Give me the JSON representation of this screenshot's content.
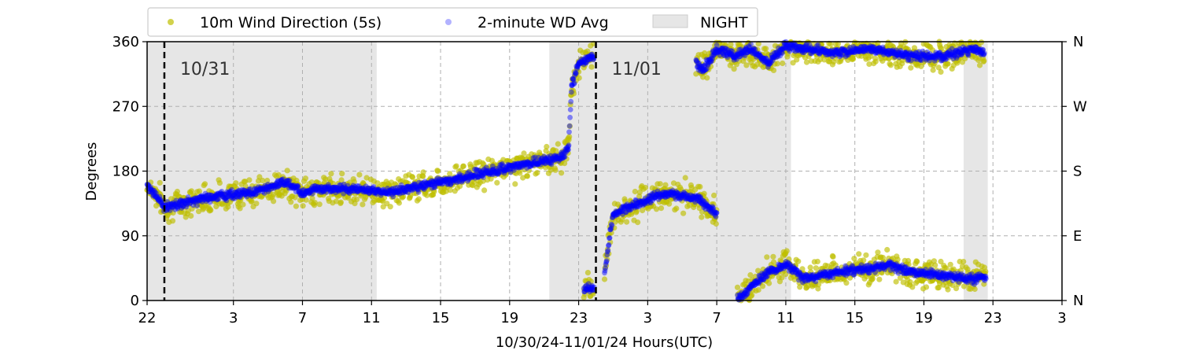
{
  "chart_data": {
    "type": "scatter",
    "xlabel": "10/30/24-11/01/24  Hours(UTC)",
    "ylabel": "Degrees",
    "xlim": [
      0,
      53
    ],
    "ylim": [
      0,
      360
    ],
    "x_ticks": [
      {
        "x": 0,
        "label": "22"
      },
      {
        "x": 5,
        "label": "3"
      },
      {
        "x": 9,
        "label": "7"
      },
      {
        "x": 13,
        "label": "11"
      },
      {
        "x": 17,
        "label": "15"
      },
      {
        "x": 21,
        "label": "19"
      },
      {
        "x": 25,
        "label": "23"
      },
      {
        "x": 29,
        "label": "3"
      },
      {
        "x": 33,
        "label": "7"
      },
      {
        "x": 37,
        "label": "11"
      },
      {
        "x": 41,
        "label": "15"
      },
      {
        "x": 45,
        "label": "19"
      },
      {
        "x": 49,
        "label": "23"
      },
      {
        "x": 53,
        "label": "3"
      }
    ],
    "y_ticks": [
      0,
      90,
      180,
      270,
      360
    ],
    "y_right_ticks": [
      {
        "y": 0,
        "label": "N"
      },
      {
        "y": 90,
        "label": "E"
      },
      {
        "y": 180,
        "label": "S"
      },
      {
        "y": 270,
        "label": "W"
      },
      {
        "y": 360,
        "label": "N"
      }
    ],
    "grid": true,
    "legend": {
      "placement": "top",
      "entries": [
        "10m Wind Direction (5s)",
        "2-minute WD Avg",
        "NIGHT"
      ]
    },
    "colors": {
      "wind_5s": "#bfbf00",
      "avg_2min": "#0000ff",
      "night": "#e6e6e6"
    },
    "night_periods": [
      [
        0,
        13.3
      ],
      [
        23.3,
        37.3
      ],
      [
        47.3,
        48.7
      ]
    ],
    "day_markers": [
      {
        "x": 1,
        "label": "10/31"
      },
      {
        "x": 26,
        "label": "11/01"
      }
    ],
    "series": [
      {
        "name": "10m Wind Direction (5s)",
        "scatter_spread": 28,
        "segments": [
          [
            [
              0,
              160
            ],
            [
              0.5,
              150
            ],
            [
              1,
              130
            ],
            [
              2,
              135
            ],
            [
              4,
              145
            ],
            [
              6,
              150
            ],
            [
              8,
              160
            ],
            [
              9,
              150
            ],
            [
              10,
              155
            ],
            [
              12,
              155
            ],
            [
              14,
              150
            ],
            [
              16,
              160
            ],
            [
              18,
              170
            ],
            [
              20,
              180
            ],
            [
              22,
              190
            ],
            [
              24,
              200
            ],
            [
              24.4,
              210
            ],
            [
              24.6,
              300
            ],
            [
              25,
              330
            ],
            [
              25.9,
              340
            ]
          ],
          [
            [
              25.3,
              10
            ],
            [
              25.9,
              20
            ]
          ],
          [
            [
              26.5,
              40
            ],
            [
              27,
              120
            ],
            [
              28,
              130
            ],
            [
              29,
              140
            ],
            [
              30,
              150
            ],
            [
              31,
              145
            ],
            [
              32,
              140
            ],
            [
              33,
              120
            ]
          ],
          [
            [
              31.8,
              330
            ],
            [
              32.2,
              320
            ],
            [
              33,
              350
            ],
            [
              34,
              340
            ],
            [
              35,
              350
            ],
            [
              36,
              330
            ],
            [
              37,
              355
            ],
            [
              38,
              350
            ],
            [
              40,
              345
            ],
            [
              42,
              350
            ],
            [
              44,
              340
            ],
            [
              46,
              340
            ],
            [
              48,
              350
            ],
            [
              48.5,
              345
            ]
          ],
          [
            [
              34.2,
              0
            ],
            [
              35,
              20
            ],
            [
              36,
              40
            ],
            [
              37,
              50
            ],
            [
              38,
              30
            ],
            [
              40,
              40
            ],
            [
              42,
              45
            ],
            [
              43,
              50
            ],
            [
              44,
              40
            ],
            [
              46,
              35
            ],
            [
              48,
              30
            ],
            [
              48.6,
              35
            ]
          ]
        ]
      },
      {
        "name": "2-minute WD Avg",
        "scatter_spread": 9,
        "segments": [
          [
            [
              0,
              160
            ],
            [
              0.5,
              145
            ],
            [
              1,
              130
            ],
            [
              2,
              135
            ],
            [
              4,
              145
            ],
            [
              6,
              150
            ],
            [
              8,
              165
            ],
            [
              9,
              150
            ],
            [
              10,
              155
            ],
            [
              12,
              155
            ],
            [
              14,
              150
            ],
            [
              16,
              160
            ],
            [
              18,
              170
            ],
            [
              20,
              180
            ],
            [
              22,
              190
            ],
            [
              24,
              200
            ],
            [
              24.4,
              210
            ],
            [
              24.6,
              300
            ],
            [
              25,
              330
            ],
            [
              25.9,
              340
            ]
          ],
          [
            [
              25.3,
              15
            ],
            [
              25.9,
              20
            ]
          ],
          [
            [
              26.5,
              40
            ],
            [
              27,
              120
            ],
            [
              28,
              130
            ],
            [
              29,
              140
            ],
            [
              30,
              150
            ],
            [
              31,
              145
            ],
            [
              32,
              140
            ],
            [
              33,
              120
            ]
          ],
          [
            [
              31.8,
              330
            ],
            [
              32.2,
              320
            ],
            [
              33,
              350
            ],
            [
              34,
              340
            ],
            [
              35,
              350
            ],
            [
              36,
              330
            ],
            [
              37,
              355
            ],
            [
              38,
              350
            ],
            [
              40,
              345
            ],
            [
              42,
              350
            ],
            [
              44,
              340
            ],
            [
              46,
              340
            ],
            [
              48,
              350
            ],
            [
              48.5,
              345
            ]
          ],
          [
            [
              34.2,
              0
            ],
            [
              35,
              20
            ],
            [
              36,
              40
            ],
            [
              37,
              50
            ],
            [
              38,
              30
            ],
            [
              40,
              40
            ],
            [
              42,
              45
            ],
            [
              43,
              50
            ],
            [
              44,
              40
            ],
            [
              46,
              35
            ],
            [
              48,
              30
            ],
            [
              48.6,
              35
            ]
          ]
        ]
      }
    ]
  }
}
